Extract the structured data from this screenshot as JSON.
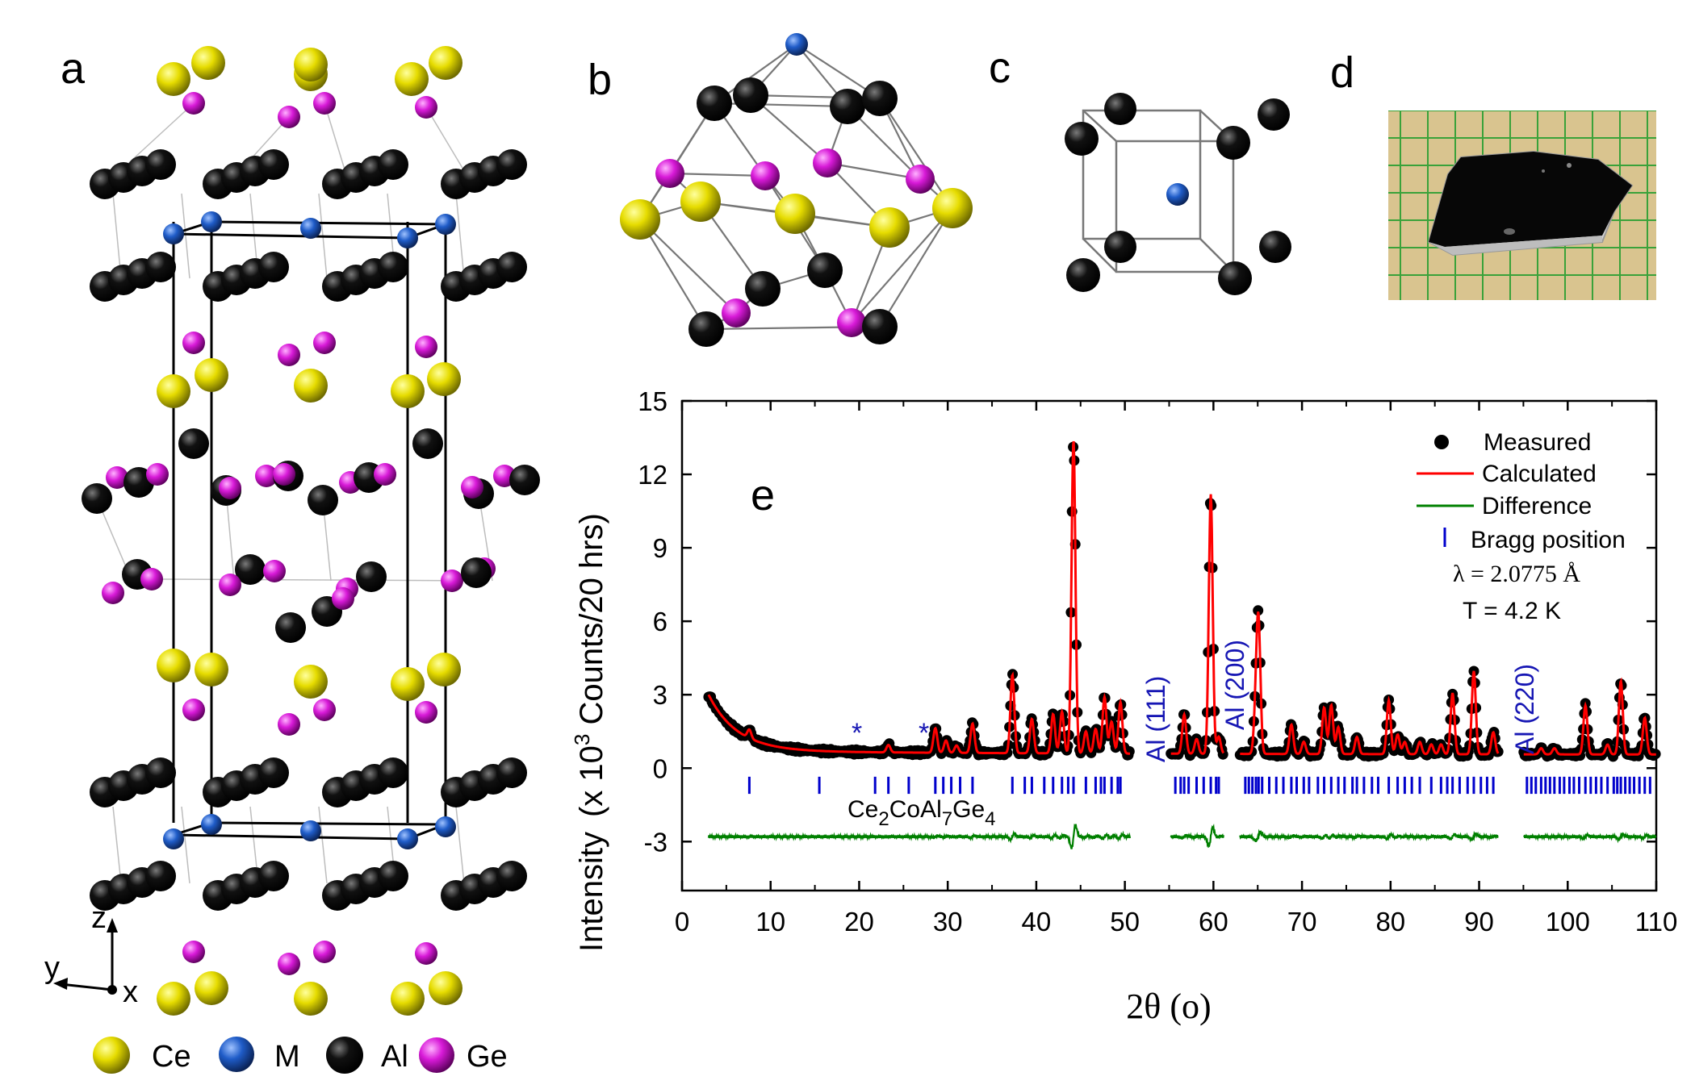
{
  "panels": {
    "a": "a",
    "b": "b",
    "c": "c",
    "d": "d",
    "e": "e"
  },
  "axes_labels": {
    "z": "z",
    "y": "y",
    "x": "x"
  },
  "key": [
    {
      "label": "Ce",
      "color": "#e8e000"
    },
    {
      "label": "M",
      "color": "#1f5cc8"
    },
    {
      "label": "Al",
      "color": "#0a0a0a"
    },
    {
      "label": "Ge",
      "color": "#d81ad8"
    }
  ],
  "compound": {
    "base": "Ce",
    "s1": "2",
    "part2": "CoAl",
    "s2": "7",
    "part3": "Ge",
    "s3": "4"
  },
  "legend": {
    "measured": "Measured",
    "calculated": "Calculated",
    "difference": "Difference",
    "bragg": "Bragg position",
    "lambda_sym": "λ",
    "lambda_val": "= 2.0775  Å",
    "temp": "T = 4.2 K"
  },
  "al_peaks": [
    "Al (111)",
    "Al (200)",
    "Al (220)"
  ],
  "asterisk": "*",
  "colors": {
    "measured": "#000000",
    "calculated": "#ff0000",
    "difference": "#008000",
    "bragg": "#0000cc"
  },
  "chart_data": {
    "type": "line",
    "title": "",
    "xlabel": "2θ (o)",
    "ylabel_main": "Intensity",
    "ylabel_paren": "(x 10",
    "ylabel_sup": "3",
    "ylabel_rest": " Counts/20 hrs)",
    "xlim": [
      0,
      110
    ],
    "ylim": [
      -5,
      15
    ],
    "xticks": [
      0,
      10,
      20,
      30,
      40,
      50,
      60,
      70,
      80,
      90,
      100,
      110
    ],
    "yticks": [
      -3,
      0,
      3,
      6,
      9,
      12,
      15
    ],
    "baseline_offset": -2.8,
    "excluded_ranges": [
      [
        50.6,
        55.2
      ],
      [
        61.2,
        63.0
      ],
      [
        92.2,
        95.0
      ]
    ],
    "peaks": [
      {
        "pos": 7.6,
        "h": 0.35
      },
      {
        "pos": 23.3,
        "h": 0.3
      },
      {
        "pos": 28.6,
        "h": 1.0
      },
      {
        "pos": 29.8,
        "h": 0.5
      },
      {
        "pos": 31.0,
        "h": 0.3
      },
      {
        "pos": 32.8,
        "h": 1.2
      },
      {
        "pos": 37.3,
        "h": 3.2
      },
      {
        "pos": 39.5,
        "h": 1.4
      },
      {
        "pos": 41.9,
        "h": 1.6
      },
      {
        "pos": 42.9,
        "h": 1.7
      },
      {
        "pos": 44.2,
        "h": 12.8
      },
      {
        "pos": 45.6,
        "h": 0.9
      },
      {
        "pos": 46.7,
        "h": 1.0
      },
      {
        "pos": 47.7,
        "h": 2.3
      },
      {
        "pos": 48.5,
        "h": 1.3
      },
      {
        "pos": 49.5,
        "h": 2.1
      },
      {
        "pos": 56.7,
        "h": 1.6
      },
      {
        "pos": 58.1,
        "h": 0.6
      },
      {
        "pos": 59.7,
        "h": 10.6
      },
      {
        "pos": 60.6,
        "h": 0.7
      },
      {
        "pos": 64.8,
        "h": 1.8
      },
      {
        "pos": 65.1,
        "h": 5.0
      },
      {
        "pos": 68.8,
        "h": 1.2
      },
      {
        "pos": 70.2,
        "h": 0.5
      },
      {
        "pos": 72.5,
        "h": 1.9
      },
      {
        "pos": 73.3,
        "h": 2.0
      },
      {
        "pos": 74.1,
        "h": 1.1
      },
      {
        "pos": 76.2,
        "h": 0.7
      },
      {
        "pos": 79.8,
        "h": 2.2
      },
      {
        "pos": 80.8,
        "h": 0.8
      },
      {
        "pos": 81.6,
        "h": 0.5
      },
      {
        "pos": 83.3,
        "h": 0.5
      },
      {
        "pos": 84.6,
        "h": 0.4
      },
      {
        "pos": 85.7,
        "h": 0.4
      },
      {
        "pos": 87.0,
        "h": 2.5
      },
      {
        "pos": 89.4,
        "h": 3.4
      },
      {
        "pos": 91.6,
        "h": 0.9
      },
      {
        "pos": 97.0,
        "h": 0.25
      },
      {
        "pos": 98.5,
        "h": 0.25
      },
      {
        "pos": 102.0,
        "h": 2.0
      },
      {
        "pos": 104.5,
        "h": 0.4
      },
      {
        "pos": 106.0,
        "h": 3.0
      },
      {
        "pos": 108.7,
        "h": 1.5
      }
    ],
    "bragg_positions": [
      7.6,
      15.5,
      21.8,
      23.3,
      25.6,
      28.6,
      29.5,
      30.4,
      31.4,
      32.8,
      37.3,
      38.7,
      39.5,
      40.9,
      41.9,
      42.9,
      43.6,
      44.2,
      45.6,
      46.7,
      47.3,
      47.7,
      48.5,
      49.2,
      49.5,
      55.7,
      56.3,
      56.7,
      57.2,
      58.1,
      58.9,
      59.7,
      60.3,
      60.6,
      63.6,
      64.0,
      64.4,
      64.8,
      65.1,
      65.5,
      66.3,
      67.1,
      67.9,
      68.8,
      69.4,
      70.2,
      70.8,
      71.8,
      72.5,
      73.3,
      74.1,
      74.8,
      75.7,
      76.2,
      77.0,
      77.9,
      78.6,
      79.8,
      80.8,
      81.6,
      82.4,
      83.3,
      84.6,
      85.7,
      86.4,
      87.0,
      87.8,
      88.7,
      89.4,
      90.2,
      90.9,
      91.6,
      95.4,
      95.9,
      96.4,
      97.0,
      97.5,
      98.0,
      98.5,
      99.1,
      99.6,
      100.2,
      100.7,
      101.3,
      102.0,
      102.6,
      103.2,
      103.8,
      104.5,
      105.2,
      105.6,
      106.0,
      106.5,
      107.0,
      107.5,
      108.1,
      108.7,
      109.3
    ]
  }
}
